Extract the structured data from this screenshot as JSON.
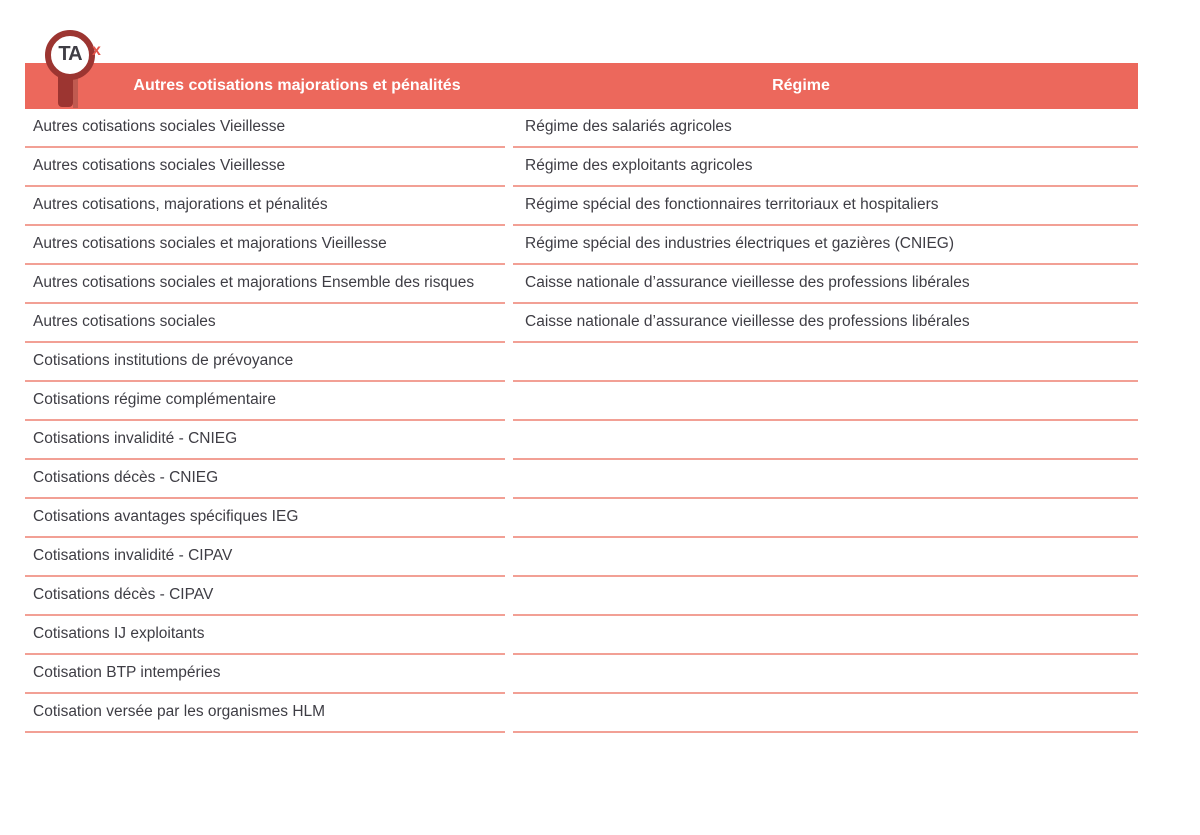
{
  "logo": {
    "lens_text": "TA",
    "suffix": "x"
  },
  "colors": {
    "header_bar": "#ec685c",
    "divider": "#f2a095",
    "icon_dark_red": "#9c3531",
    "body_text": "#3e3d44",
    "header_text": "#ffffff",
    "logo_x": "#e3544a"
  },
  "table": {
    "headers": {
      "cotisation": "Autres cotisations majorations et pénalités",
      "regime": "Régime"
    },
    "rows": [
      {
        "cotisation": "Autres cotisations sociales Vieillesse",
        "regime": "Régime des salariés agricoles"
      },
      {
        "cotisation": "Autres cotisations sociales Vieillesse",
        "regime": "Régime des exploitants agricoles"
      },
      {
        "cotisation": "Autres cotisations, majorations et pénalités",
        "regime": "Régime spécial des fonctionnaires territoriaux et hospitaliers"
      },
      {
        "cotisation": "Autres cotisations sociales et majorations Vieillesse",
        "regime": "Régime spécial des industries électriques et gazières (CNIEG)"
      },
      {
        "cotisation": "Autres cotisations sociales et majorations Ensemble des risques",
        "regime": "Caisse nationale d’assurance vieillesse des professions libérales"
      },
      {
        "cotisation": "Autres cotisations sociales",
        "regime": "Caisse nationale d’assurance vieillesse des professions libérales"
      },
      {
        "cotisation": "Cotisations institutions de prévoyance",
        "regime": ""
      },
      {
        "cotisation": "Cotisations régime complémentaire",
        "regime": ""
      },
      {
        "cotisation": "Cotisations invalidité - CNIEG",
        "regime": ""
      },
      {
        "cotisation": "Cotisations décès - CNIEG",
        "regime": ""
      },
      {
        "cotisation": "Cotisations avantages spécifiques IEG",
        "regime": ""
      },
      {
        "cotisation": "Cotisations invalidité - CIPAV",
        "regime": ""
      },
      {
        "cotisation": "Cotisations décès - CIPAV",
        "regime": ""
      },
      {
        "cotisation": "Cotisations IJ exploitants",
        "regime": ""
      },
      {
        "cotisation": "Cotisation BTP intempéries",
        "regime": ""
      },
      {
        "cotisation": "Cotisation versée par les organismes HLM",
        "regime": ""
      }
    ]
  }
}
